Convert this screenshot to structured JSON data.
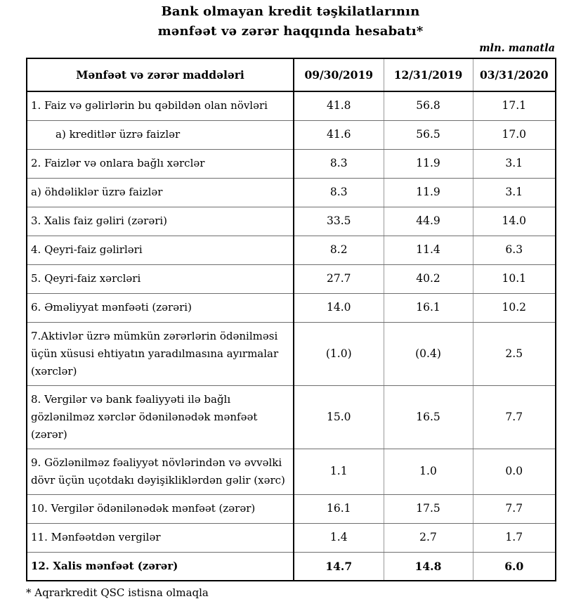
{
  "title": {
    "line1": "Bank olmayan kredit təşkilatlarının",
    "line2": "mənfəət və zərər haqqında hesabatı*"
  },
  "unit_label": "mln. manatla",
  "table": {
    "header": {
      "label": "Mənfəət və zərər maddələri",
      "columns": [
        "09/30/2019",
        "12/31/2019",
        "03/31/2020"
      ]
    },
    "rows": [
      {
        "label": "1. Faiz və gəlirlərin bu qəbildən olan növləri",
        "values": [
          "41.8",
          "56.8",
          "17.1"
        ],
        "indent": false,
        "bold": false
      },
      {
        "label": "a) kreditlər üzrə faizlər",
        "values": [
          "41.6",
          "56.5",
          "17.0"
        ],
        "indent": true,
        "bold": false
      },
      {
        "label": "2. Faizlər və onlara bağlı xərclər",
        "values": [
          "8.3",
          "11.9",
          "3.1"
        ],
        "indent": false,
        "bold": false
      },
      {
        "label": "a) öhdəliklər üzrə faizlər",
        "values": [
          "8.3",
          "11.9",
          "3.1"
        ],
        "indent": false,
        "bold": false
      },
      {
        "label": "3. Xalis faiz gəliri (zərəri)",
        "values": [
          "33.5",
          "44.9",
          "14.0"
        ],
        "indent": false,
        "bold": false
      },
      {
        "label": "4. Qeyri-faiz gəlirləri",
        "values": [
          "8.2",
          "11.4",
          "6.3"
        ],
        "indent": false,
        "bold": false
      },
      {
        "label": "5. Qeyri-faiz xərcləri",
        "values": [
          "27.7",
          "40.2",
          "10.1"
        ],
        "indent": false,
        "bold": false
      },
      {
        "label": "6. Əməliyyat mənfəəti (zərəri)",
        "values": [
          "14.0",
          "16.1",
          "10.2"
        ],
        "indent": false,
        "bold": false
      },
      {
        "label": "7.Aktivlər üzrə mümkün zərərlərin ödənilməsi üçün xüsusi ehtiyatın yaradılmasına ayırmalar (xərclər)",
        "values": [
          "(1.0)",
          "(0.4)",
          "2.5"
        ],
        "indent": false,
        "bold": false
      },
      {
        "label": "8. Vergilər və bank fəaliyyəti ilə bağlı gözlənilməz xərclər ödənilənədək mənfəət (zərər)",
        "values": [
          "15.0",
          "16.5",
          "7.7"
        ],
        "indent": false,
        "bold": false
      },
      {
        "label": "9. Gözlənilməz fəaliyyət növlərindən və əvvəlki dövr üçün uçotdakı dəyişikliklərdən gəlir (xərc)",
        "values": [
          "1.1",
          "1.0",
          "0.0"
        ],
        "indent": false,
        "bold": false
      },
      {
        "label": "10. Vergilər ödənilənədək mənfəət (zərər)",
        "values": [
          "16.1",
          "17.5",
          "7.7"
        ],
        "indent": false,
        "bold": false
      },
      {
        "label": "11. Mənfəətdən vergilər",
        "values": [
          "1.4",
          "2.7",
          "1.7"
        ],
        "indent": false,
        "bold": false
      },
      {
        "label": "12. Xalis mənfəət (zərər)",
        "values": [
          "14.7",
          "14.8",
          "6.0"
        ],
        "indent": false,
        "bold": true
      }
    ]
  },
  "footnote": "* Aqrarkredit QSC istisna olmaqla",
  "colors": {
    "outer_border": "#000000",
    "inner_horizontal_line": "#6e6e6e",
    "inner_vertical_line": "#9a9a9a",
    "text": "#000000",
    "background": "#ffffff"
  },
  "chart_data": {
    "type": "table",
    "title": "Bank olmayan kredit təşkilatlarının mənfəət və zərər haqqında hesabatı*",
    "unit": "mln. manatla",
    "categories": [
      "09/30/2019",
      "12/31/2019",
      "03/31/2020"
    ],
    "series": [
      {
        "name": "1. Faiz və gəlirlərin bu qəbildən olan növləri",
        "values": [
          41.8,
          56.8,
          17.1
        ]
      },
      {
        "name": "a) kreditlər üzrə faizlər",
        "values": [
          41.6,
          56.5,
          17.0
        ]
      },
      {
        "name": "2. Faizlər və onlara bağlı xərclər",
        "values": [
          8.3,
          11.9,
          3.1
        ]
      },
      {
        "name": "a) öhdəliklər üzrə faizlər",
        "values": [
          8.3,
          11.9,
          3.1
        ]
      },
      {
        "name": "3. Xalis faiz gəliri (zərəri)",
        "values": [
          33.5,
          44.9,
          14.0
        ]
      },
      {
        "name": "4. Qeyri-faiz gəlirləri",
        "values": [
          8.2,
          11.4,
          6.3
        ]
      },
      {
        "name": "5. Qeyri-faiz xərcləri",
        "values": [
          27.7,
          40.2,
          10.1
        ]
      },
      {
        "name": "6. Əməliyyat mənfəəti (zərəri)",
        "values": [
          14.0,
          16.1,
          10.2
        ]
      },
      {
        "name": "7.Aktivlər üzrə mümkün zərərlərin ödənilməsi üçün xüsusi ehtiyatın yaradılmasına ayırmalar (xərclər)",
        "values": [
          -1.0,
          -0.4,
          2.5
        ]
      },
      {
        "name": "8. Vergilər və bank fəaliyyəti ilə bağlı gözlənilməz xərclər ödənilənədək mənfəət (zərər)",
        "values": [
          15.0,
          16.5,
          7.7
        ]
      },
      {
        "name": "9. Gözlənilməz fəaliyyət növlərindən və əvvəlki dövr üçün uçotdakı dəyişikliklərdən gəlir (xərc)",
        "values": [
          1.1,
          1.0,
          0.0
        ]
      },
      {
        "name": "10. Vergilər ödənilənədək mənfəət (zərər)",
        "values": [
          16.1,
          17.5,
          7.7
        ]
      },
      {
        "name": "11. Mənfəətdən vergilər",
        "values": [
          1.4,
          2.7,
          1.7
        ]
      },
      {
        "name": "12. Xalis mənfəət (zərər)",
        "values": [
          14.7,
          14.8,
          6.0
        ]
      }
    ]
  }
}
